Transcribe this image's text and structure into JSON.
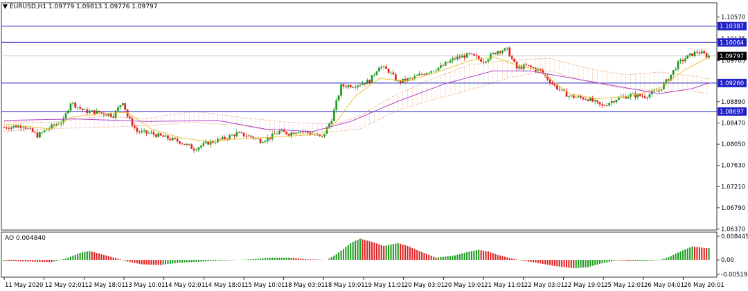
{
  "window": {
    "header_label": "EURUSD,H1  1.09779 1.09813 1.09776 1.09797",
    "dropdown_glyph": "▼"
  },
  "colors": {
    "bull": "#1e9c1e",
    "bear": "#e02020",
    "ma_fast": "#f0c030",
    "ma_slow": "#b040c8",
    "cloud": "#e8a070",
    "cloud2": "#d8a0c8",
    "level_line": "#2020c8",
    "bid_line": "#c0c0c0",
    "ao_up": "#1e9c1e",
    "ao_down": "#e02020"
  },
  "chart_data": [
    {
      "type": "candlestick",
      "symbol": "EURUSD",
      "timeframe": "H1",
      "ohlc_label": "1.09779 1.09813 1.09776 1.09797",
      "ylim": [
        1.0635,
        1.1085
      ],
      "y_ticks": [
        "1.10570",
        "1.10135",
        "1.09705",
        "1.08890",
        "1.08470",
        "1.08050",
        "1.07630",
        "1.07210",
        "1.06790",
        "1.06370"
      ],
      "x_labels": [
        "11 May 2020",
        "12 May 02:01",
        "12 May 18:01",
        "13 May 10:01",
        "14 May 02:01",
        "14 May 18:01",
        "15 May 10:01",
        "18 May 03:01",
        "18 May 19:01",
        "19 May 11:01",
        "20 May 03:01",
        "20 May 19:01",
        "21 May 11:01",
        "22 May 03:01",
        "22 May 19:01",
        "25 May 12:01",
        "26 May 04:01",
        "26 May 20:01"
      ],
      "levels": [
        {
          "value": 1.10387,
          "label": "1.10387"
        },
        {
          "value": 1.10064,
          "label": "1.10064"
        },
        {
          "value": 1.0926,
          "label": "1.09260"
        },
        {
          "value": 1.08697,
          "label": "1.08697"
        }
      ],
      "current_price": {
        "value": 1.09797,
        "label": "1.09797"
      },
      "price_path": [
        [
          0,
          1.0838
        ],
        [
          8,
          1.0842
        ],
        [
          14,
          1.0822
        ],
        [
          20,
          1.084
        ],
        [
          25,
          1.0852
        ],
        [
          28,
          1.0888
        ],
        [
          34,
          1.087
        ],
        [
          40,
          1.0868
        ],
        [
          46,
          1.0862
        ],
        [
          50,
          1.089
        ],
        [
          52,
          1.086
        ],
        [
          56,
          1.083
        ],
        [
          62,
          1.0826
        ],
        [
          68,
          1.0818
        ],
        [
          74,
          1.081
        ],
        [
          80,
          1.0796
        ],
        [
          86,
          1.0808
        ],
        [
          92,
          1.0815
        ],
        [
          98,
          1.0826
        ],
        [
          104,
          1.082
        ],
        [
          108,
          1.0812
        ],
        [
          112,
          1.0818
        ],
        [
          116,
          1.083
        ],
        [
          120,
          1.0826
        ],
        [
          124,
          1.0832
        ],
        [
          128,
          1.0828
        ],
        [
          134,
          1.0818
        ],
        [
          138,
          1.0855
        ],
        [
          142,
          1.092
        ],
        [
          148,
          1.0922
        ],
        [
          154,
          1.093
        ],
        [
          158,
          1.096
        ],
        [
          162,
          1.095
        ],
        [
          166,
          1.0928
        ],
        [
          172,
          1.0935
        ],
        [
          178,
          1.0948
        ],
        [
          184,
          1.0958
        ],
        [
          190,
          1.0975
        ],
        [
          196,
          1.0982
        ],
        [
          202,
          1.097
        ],
        [
          208,
          1.099
        ],
        [
          212,
          1.0992
        ],
        [
          216,
          1.0955
        ],
        [
          220,
          1.096
        ],
        [
          226,
          1.095
        ],
        [
          232,
          1.092
        ],
        [
          238,
          1.09
        ],
        [
          246,
          1.0895
        ],
        [
          252,
          1.088
        ],
        [
          258,
          1.0895
        ],
        [
          264,
          1.0902
        ],
        [
          270,
          1.09
        ],
        [
          276,
          1.0912
        ],
        [
          280,
          1.0935
        ],
        [
          284,
          1.0965
        ],
        [
          288,
          1.0978
        ],
        [
          292,
          1.0988
        ],
        [
          294,
          1.0985
        ],
        [
          296,
          1.098
        ]
      ],
      "ma_fast": [
        [
          0,
          1.0845
        ],
        [
          20,
          1.0835
        ],
        [
          28,
          1.0858
        ],
        [
          40,
          1.0865
        ],
        [
          52,
          1.0868
        ],
        [
          62,
          1.0835
        ],
        [
          74,
          1.0818
        ],
        [
          86,
          1.081
        ],
        [
          98,
          1.0815
        ],
        [
          110,
          1.0818
        ],
        [
          124,
          1.0822
        ],
        [
          134,
          1.0825
        ],
        [
          140,
          1.085
        ],
        [
          148,
          1.09
        ],
        [
          158,
          1.0935
        ],
        [
          170,
          1.093
        ],
        [
          184,
          1.095
        ],
        [
          196,
          1.097
        ],
        [
          206,
          1.0978
        ],
        [
          214,
          1.0965
        ],
        [
          226,
          1.095
        ],
        [
          238,
          1.0905
        ],
        [
          250,
          1.0895
        ],
        [
          264,
          1.09
        ],
        [
          276,
          1.0915
        ],
        [
          286,
          1.095
        ],
        [
          296,
          1.0975
        ]
      ],
      "ma_slow": [
        [
          0,
          1.0852
        ],
        [
          30,
          1.0855
        ],
        [
          60,
          1.085
        ],
        [
          90,
          1.0852
        ],
        [
          110,
          1.0835
        ],
        [
          130,
          1.083
        ],
        [
          146,
          1.085
        ],
        [
          166,
          1.089
        ],
        [
          186,
          1.0925
        ],
        [
          206,
          1.095
        ],
        [
          222,
          1.095
        ],
        [
          240,
          1.0935
        ],
        [
          258,
          1.092
        ],
        [
          276,
          1.0905
        ],
        [
          290,
          1.0915
        ],
        [
          296,
          1.0925
        ]
      ],
      "cloud_upper": [
        [
          0,
          1.085
        ],
        [
          20,
          1.0848
        ],
        [
          40,
          1.086
        ],
        [
          60,
          1.0856
        ],
        [
          80,
          1.087
        ],
        [
          100,
          1.0858
        ],
        [
          120,
          1.0848
        ],
        [
          140,
          1.0845
        ],
        [
          150,
          1.0862
        ],
        [
          164,
          1.09
        ],
        [
          178,
          1.093
        ],
        [
          196,
          1.0962
        ],
        [
          214,
          1.0972
        ],
        [
          230,
          1.0975
        ],
        [
          246,
          1.0955
        ],
        [
          262,
          1.0942
        ],
        [
          276,
          1.0948
        ],
        [
          290,
          1.094
        ],
        [
          296,
          1.0935
        ]
      ],
      "cloud_lower": [
        [
          0,
          1.083
        ],
        [
          20,
          1.0836
        ],
        [
          40,
          1.0838
        ],
        [
          60,
          1.0842
        ],
        [
          80,
          1.0848
        ],
        [
          100,
          1.0842
        ],
        [
          120,
          1.0826
        ],
        [
          140,
          1.083
        ],
        [
          150,
          1.0835
        ],
        [
          164,
          1.0868
        ],
        [
          178,
          1.089
        ],
        [
          196,
          1.0912
        ],
        [
          214,
          1.0938
        ],
        [
          230,
          1.095
        ],
        [
          246,
          1.0928
        ],
        [
          262,
          1.0915
        ],
        [
          276,
          1.091
        ],
        [
          290,
          1.091
        ],
        [
          296,
          1.0905
        ]
      ]
    },
    {
      "type": "bar",
      "indicator": "AO",
      "label": "AO 0.004840",
      "ylim": [
        -0.00519,
        0.00845
      ],
      "y_ticks": [
        "0.008445",
        "0.00",
        "-0.005198"
      ],
      "values_path": [
        [
          0,
          -0.0004
        ],
        [
          10,
          -0.0006
        ],
        [
          20,
          -0.0008
        ],
        [
          26,
          0.0005
        ],
        [
          32,
          0.0025
        ],
        [
          36,
          0.0032
        ],
        [
          42,
          0.0018
        ],
        [
          48,
          0.0004
        ],
        [
          52,
          -0.0006
        ],
        [
          58,
          -0.0016
        ],
        [
          66,
          -0.0018
        ],
        [
          74,
          -0.001
        ],
        [
          84,
          -0.0006
        ],
        [
          94,
          -0.0002
        ],
        [
          104,
          0.0002
        ],
        [
          112,
          0.0008
        ],
        [
          120,
          0.0008
        ],
        [
          128,
          0.0002
        ],
        [
          136,
          0.0
        ],
        [
          140,
          0.002
        ],
        [
          146,
          0.006
        ],
        [
          150,
          0.0076
        ],
        [
          156,
          0.0062
        ],
        [
          160,
          0.005
        ],
        [
          166,
          0.006
        ],
        [
          170,
          0.005
        ],
        [
          176,
          0.0028
        ],
        [
          182,
          0.0008
        ],
        [
          190,
          0.0016
        ],
        [
          196,
          0.003
        ],
        [
          200,
          0.0036
        ],
        [
          204,
          0.003
        ],
        [
          208,
          0.0018
        ],
        [
          214,
          0.0005
        ],
        [
          218,
          -0.0002
        ],
        [
          224,
          -0.001
        ],
        [
          232,
          -0.0022
        ],
        [
          240,
          -0.003
        ],
        [
          246,
          -0.0026
        ],
        [
          252,
          -0.0012
        ],
        [
          258,
          -0.0002
        ],
        [
          264,
          -0.0004
        ],
        [
          270,
          -0.0004
        ],
        [
          276,
          -0.0001
        ],
        [
          280,
          0.001
        ],
        [
          286,
          0.0034
        ],
        [
          290,
          0.0048
        ],
        [
          296,
          0.0042
        ]
      ]
    }
  ]
}
